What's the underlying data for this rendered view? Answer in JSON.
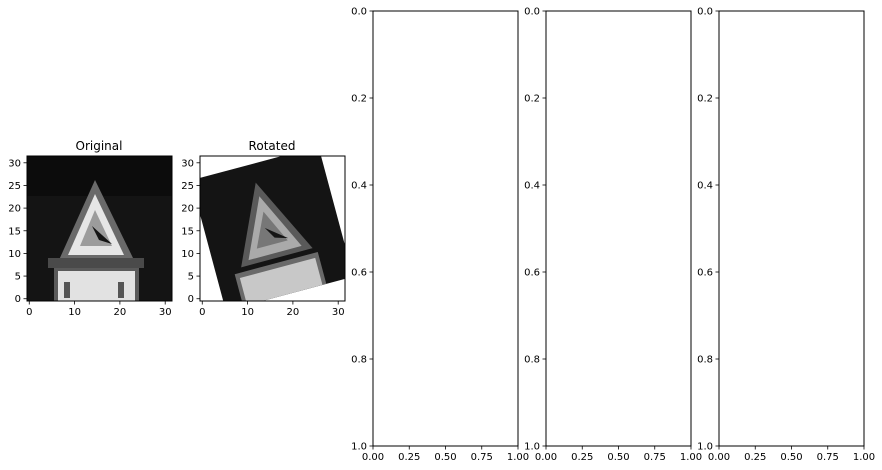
{
  "chart_data": [
    {
      "type": "image",
      "title": "Original",
      "xticks": [
        0,
        10,
        20,
        30
      ],
      "yticks": [
        0,
        5,
        10,
        15,
        20,
        25,
        30
      ],
      "xlim": [
        -0.5,
        31.5
      ],
      "ylim": [
        31.5,
        -0.5
      ],
      "colormap": "gray",
      "content": "grayscale traffic sign: triangular warning sign above rectangular plate"
    },
    {
      "type": "image",
      "title": "Rotated",
      "xticks": [
        0,
        10,
        20,
        30
      ],
      "yticks": [
        0,
        5,
        10,
        15,
        20,
        25,
        30
      ],
      "xlim": [
        -0.5,
        31.5
      ],
      "ylim": [
        31.5,
        -0.5
      ],
      "colormap": "gray",
      "rotation_deg": -15,
      "content": "same sign rotated, white corner fill"
    },
    {
      "type": "empty",
      "title": "",
      "xlim": [
        0,
        1
      ],
      "ylim": [
        0,
        1
      ],
      "xticks": [
        0.0,
        0.25,
        0.5,
        0.75,
        1.0
      ],
      "yticks": [
        0.0,
        0.2,
        0.4,
        0.6,
        0.8,
        1.0
      ]
    },
    {
      "type": "empty",
      "title": "",
      "xlim": [
        0,
        1
      ],
      "ylim": [
        0,
        1
      ],
      "xticks": [
        0.0,
        0.25,
        0.5,
        0.75,
        1.0
      ],
      "yticks": [
        0.0,
        0.2,
        0.4,
        0.6,
        0.8,
        1.0
      ]
    },
    {
      "type": "empty",
      "title": "",
      "xlim": [
        0,
        1
      ],
      "ylim": [
        0,
        1
      ],
      "xticks": [
        0.0,
        0.25,
        0.5,
        0.75,
        1.0
      ],
      "yticks": [
        0.0,
        0.2,
        0.4,
        0.6,
        0.8,
        1.0
      ]
    }
  ],
  "tick_formats": {
    "empty_x": [
      "0.00",
      "0.25",
      "0.50",
      "0.75",
      "1.00"
    ],
    "empty_y": [
      "0.0",
      "0.2",
      "0.4",
      "0.6",
      "0.8",
      "1.0"
    ]
  }
}
